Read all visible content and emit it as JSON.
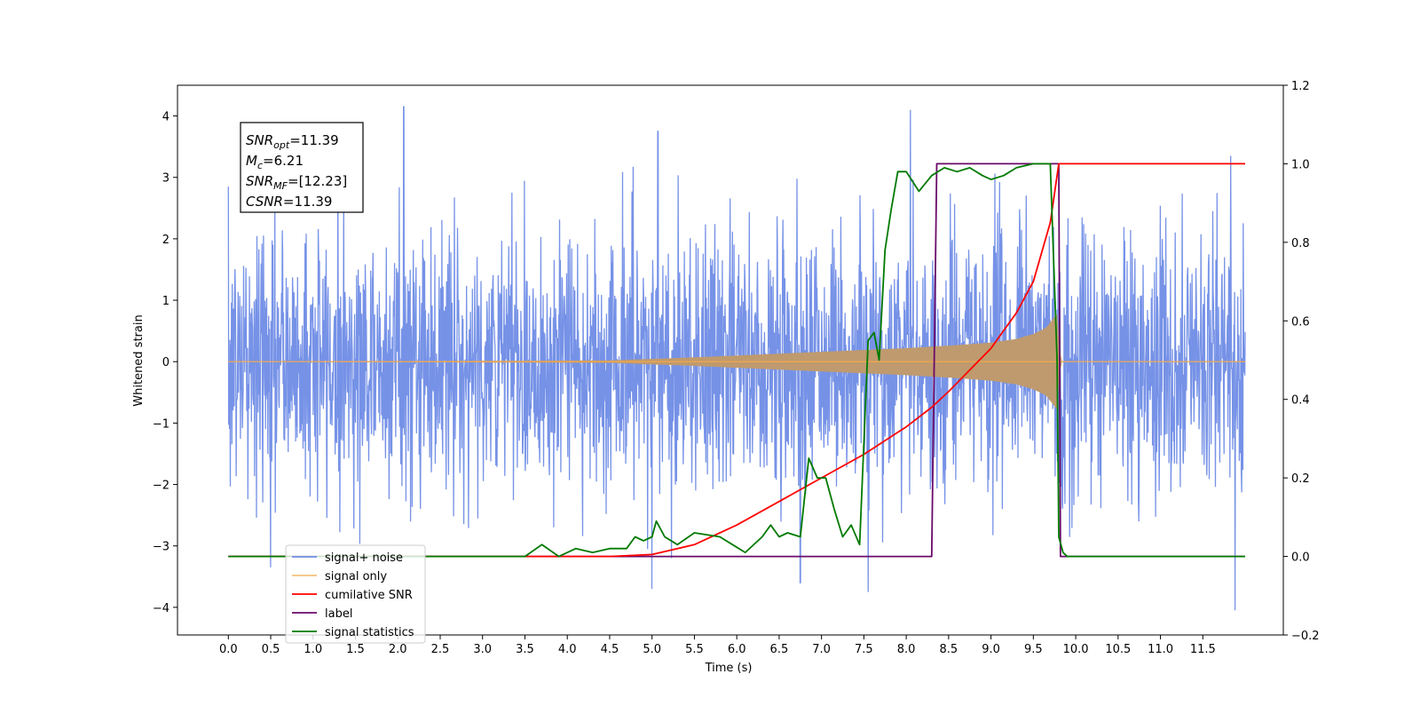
{
  "chart_data": {
    "type": "line",
    "xlabel": "Time (s)",
    "ylabel": "Whitened strain",
    "xlim": [
      -0.6,
      12.45
    ],
    "ylim": [
      -4.45,
      4.5
    ],
    "y2lim": [
      -0.2,
      1.2
    ],
    "x_ticks": [
      0.0,
      0.5,
      1.0,
      1.5,
      2.0,
      2.5,
      3.0,
      3.5,
      4.0,
      4.5,
      5.0,
      5.5,
      6.0,
      6.5,
      7.0,
      7.5,
      8.0,
      8.5,
      9.0,
      9.5,
      10.0,
      10.5,
      11.0,
      11.5
    ],
    "x_tick_labels": [
      "0.0",
      "0.5",
      "1.0",
      "1.5",
      "2.0",
      "2.5",
      "3.0",
      "3.5",
      "4.0",
      "4.5",
      "5.0",
      "5.5",
      "6.0",
      "6.5",
      "7.0",
      "7.5",
      "8.0",
      "8.5",
      "9.0",
      "9.5",
      "10.0",
      "10.5",
      "11.0",
      "11.5"
    ],
    "y_ticks": [
      -4,
      -3,
      -2,
      -1,
      0,
      1,
      2,
      3,
      4
    ],
    "y_tick_labels": [
      "−4",
      "−3",
      "−2",
      "−1",
      "0",
      "1",
      "2",
      "3",
      "4"
    ],
    "y2_ticks": [
      -0.2,
      0.0,
      0.2,
      0.4,
      0.6,
      0.8,
      1.0,
      1.2
    ],
    "y2_tick_labels": [
      "−0.2",
      "0.0",
      "0.2",
      "0.4",
      "0.6",
      "0.8",
      "1.0",
      "1.2"
    ],
    "grid": false,
    "legend_position": "lower-left",
    "annotation": {
      "lines": [
        {
          "main": "SNR",
          "sub": "opt",
          "rest": "=11.39"
        },
        {
          "main": "M",
          "sub": "c",
          "rest": "=6.21"
        },
        {
          "main": "SNR",
          "sub": "MF",
          "rest": "=[12.23]"
        },
        {
          "main": "CSNR",
          "sub": "",
          "rest": "=11.39"
        }
      ]
    },
    "series": [
      {
        "name": "signal+ noise",
        "color": "#6f8ce6",
        "axis": "left",
        "kind": "noise_band",
        "x_range": [
          0.0,
          12.0
        ],
        "approx_envelope": [
          -3.5,
          3.5
        ],
        "observed_peaks": [
          {
            "x": 0.0,
            "y": 2.85
          },
          {
            "x": 0.5,
            "y": -3.35
          },
          {
            "x": 2.07,
            "y": 4.15
          },
          {
            "x": 5.07,
            "y": 3.75
          },
          {
            "x": 5.0,
            "y": -3.7
          },
          {
            "x": 6.75,
            "y": -3.6
          },
          {
            "x": 7.55,
            "y": -3.75
          },
          {
            "x": 8.05,
            "y": 4.1
          },
          {
            "x": 11.88,
            "y": -4.05
          },
          {
            "x": 11.83,
            "y": 3.35
          }
        ]
      },
      {
        "name": "signal only",
        "color": "#c09a70",
        "axis": "left",
        "kind": "chirp",
        "x": [
          0.0,
          4.5,
          5.5,
          6.5,
          7.0,
          7.5,
          8.0,
          8.5,
          9.0,
          9.3,
          9.5,
          9.65,
          9.78,
          9.82,
          12.0
        ],
        "amplitude": [
          0.0,
          0.02,
          0.07,
          0.13,
          0.16,
          0.19,
          0.22,
          0.26,
          0.31,
          0.37,
          0.45,
          0.55,
          0.78,
          0.0,
          0.0
        ]
      },
      {
        "name": "cumilative SNR",
        "color": "#ff0000",
        "axis": "right",
        "x": [
          0.0,
          4.0,
          4.5,
          5.0,
          5.5,
          6.0,
          6.5,
          7.0,
          7.5,
          8.0,
          8.3,
          8.5,
          9.0,
          9.3,
          9.5,
          9.7,
          9.8,
          9.83,
          12.0
        ],
        "y": [
          0.0,
          0.0,
          0.0,
          0.005,
          0.03,
          0.08,
          0.14,
          0.2,
          0.26,
          0.33,
          0.38,
          0.42,
          0.53,
          0.62,
          0.7,
          0.85,
          1.0,
          1.0,
          1.0
        ]
      },
      {
        "name": "label",
        "color": "#6a0a6a",
        "axis": "right",
        "x": [
          0.0,
          8.3,
          8.36,
          9.8,
          9.82,
          12.0
        ],
        "y": [
          0.0,
          0.0,
          1.0,
          1.0,
          0.0,
          0.0
        ]
      },
      {
        "name": "signal statistics",
        "color": "#007a00",
        "axis": "right",
        "x": [
          0.0,
          3.0,
          3.5,
          3.7,
          3.9,
          4.1,
          4.3,
          4.5,
          4.7,
          4.8,
          4.9,
          5.0,
          5.05,
          5.15,
          5.3,
          5.5,
          5.8,
          5.95,
          6.1,
          6.3,
          6.4,
          6.5,
          6.6,
          6.75,
          6.85,
          6.95,
          7.05,
          7.15,
          7.25,
          7.35,
          7.45,
          7.55,
          7.62,
          7.68,
          7.75,
          7.82,
          7.9,
          8.0,
          8.15,
          8.3,
          8.45,
          8.6,
          8.75,
          8.9,
          9.0,
          9.15,
          9.3,
          9.5,
          9.7,
          9.78,
          9.8,
          9.85,
          9.9,
          12.0
        ],
        "y": [
          0.0,
          0.0,
          0.0,
          0.03,
          0.0,
          0.02,
          0.01,
          0.02,
          0.02,
          0.05,
          0.04,
          0.05,
          0.09,
          0.05,
          0.03,
          0.06,
          0.05,
          0.03,
          0.01,
          0.05,
          0.08,
          0.05,
          0.06,
          0.05,
          0.25,
          0.2,
          0.2,
          0.12,
          0.05,
          0.08,
          0.03,
          0.55,
          0.57,
          0.5,
          0.78,
          0.88,
          0.98,
          0.98,
          0.93,
          0.97,
          0.99,
          0.98,
          0.99,
          0.97,
          0.96,
          0.97,
          0.99,
          1.0,
          1.0,
          0.5,
          0.05,
          0.01,
          0.0,
          0.0
        ]
      }
    ]
  }
}
